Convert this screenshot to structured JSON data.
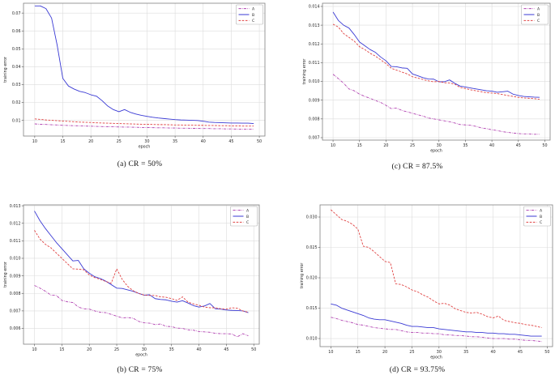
{
  "figure": {
    "legend_entries": [
      "A",
      "B",
      "C"
    ],
    "colors": {
      "A": "#b143b1",
      "B": "#3a3ad4",
      "C": "#e04343"
    },
    "line_styles": {
      "A": "dashdot",
      "B": "solid",
      "C": "dashed"
    },
    "grid_color": "#dcdcdc",
    "background": "#ffffff"
  },
  "chart_data": [
    {
      "id": "a",
      "type": "line",
      "caption": "(a) CR = 50%",
      "xlabel": "epoch",
      "ylabel": "training error",
      "legend_position": "upper right",
      "grid": true,
      "xlim": [
        8,
        51
      ],
      "ylim": [
        0.0012,
        0.0755
      ],
      "xticks": [
        10,
        15,
        20,
        25,
        30,
        35,
        40,
        45,
        50
      ],
      "yticks": [
        0.01,
        0.02,
        0.03,
        0.04,
        0.05,
        0.06,
        0.07
      ],
      "ytick_labels": [
        "0.01",
        "0.02",
        "0.03",
        "0.04",
        "0.05",
        "0.06",
        "0.07"
      ],
      "x": [
        10,
        11,
        12,
        13,
        14,
        15,
        16,
        17,
        18,
        19,
        20,
        21,
        22,
        23,
        24,
        25,
        26,
        27,
        28,
        29,
        30,
        31,
        32,
        33,
        34,
        35,
        36,
        37,
        38,
        39,
        40,
        41,
        42,
        43,
        44,
        45,
        46,
        47,
        48,
        49
      ],
      "series": [
        {
          "name": "A",
          "style": "dashdot",
          "color": "#b143b1",
          "values": [
            0.008,
            0.0078,
            0.0077,
            0.0075,
            0.0074,
            0.0072,
            0.0071,
            0.007,
            0.0069,
            0.0068,
            0.0067,
            0.0066,
            0.0065,
            0.0064,
            0.0064,
            0.0063,
            0.0062,
            0.0062,
            0.0061,
            0.006,
            0.006,
            0.0059,
            0.0058,
            0.0058,
            0.0057,
            0.0057,
            0.0056,
            0.0056,
            0.0055,
            0.0055,
            0.0054,
            0.0054,
            0.0053,
            0.0053,
            0.0052,
            0.0052,
            0.0051,
            0.0051,
            0.005,
            0.005
          ]
        },
        {
          "name": "B",
          "style": "solid",
          "color": "#3a3ad4",
          "values": [
            0.074,
            0.074,
            0.0725,
            0.0672,
            0.052,
            0.0335,
            0.0292,
            0.0275,
            0.0262,
            0.0255,
            0.0243,
            0.0235,
            0.021,
            0.018,
            0.016,
            0.0148,
            0.016,
            0.0145,
            0.0135,
            0.0128,
            0.0122,
            0.0117,
            0.0113,
            0.011,
            0.0107,
            0.0104,
            0.0102,
            0.0101,
            0.01,
            0.0099,
            0.0095,
            0.009,
            0.0088,
            0.0087,
            0.0086,
            0.0085,
            0.0085,
            0.0084,
            0.0084,
            0.0082
          ]
        },
        {
          "name": "C",
          "style": "dashed",
          "color": "#e04343",
          "values": [
            0.0108,
            0.0105,
            0.0102,
            0.01,
            0.0098,
            0.0096,
            0.0094,
            0.0092,
            0.009,
            0.0089,
            0.0088,
            0.0086,
            0.0085,
            0.0084,
            0.0083,
            0.0082,
            0.0081,
            0.008,
            0.0079,
            0.0078,
            0.0078,
            0.0077,
            0.0076,
            0.0076,
            0.0075,
            0.0074,
            0.0074,
            0.0073,
            0.0073,
            0.0072,
            0.0072,
            0.0071,
            0.0071,
            0.007,
            0.007,
            0.0069,
            0.0069,
            0.0068,
            0.0068,
            0.0068
          ]
        }
      ]
    },
    {
      "id": "c",
      "type": "line",
      "caption": "(c) CR = 87.5%",
      "xlabel": "epoch",
      "ylabel": "training error",
      "legend_position": "upper right",
      "grid": true,
      "xlim": [
        8,
        51
      ],
      "ylim": [
        0.00687,
        0.01417
      ],
      "xticks": [
        10,
        15,
        20,
        25,
        30,
        35,
        40,
        45,
        50
      ],
      "yticks": [
        0.007,
        0.008,
        0.009,
        0.01,
        0.011,
        0.012,
        0.013,
        0.014
      ],
      "ytick_labels": [
        "0.007",
        "0.008",
        "0.009",
        "0.010",
        "0.011",
        "0.012",
        "0.013",
        "0.014"
      ],
      "x": [
        10,
        11,
        12,
        13,
        14,
        15,
        16,
        17,
        18,
        19,
        20,
        21,
        22,
        23,
        24,
        25,
        26,
        27,
        28,
        29,
        30,
        31,
        32,
        33,
        34,
        35,
        36,
        37,
        38,
        39,
        40,
        41,
        42,
        43,
        44,
        45,
        46,
        47,
        48,
        49
      ],
      "series": [
        {
          "name": "A",
          "style": "dashdot",
          "color": "#b143b1",
          "values": [
            0.01038,
            0.01015,
            0.0099,
            0.0096,
            0.0095,
            0.00932,
            0.0092,
            0.0091,
            0.00898,
            0.00888,
            0.00872,
            0.00855,
            0.00858,
            0.00845,
            0.00838,
            0.0083,
            0.00822,
            0.00815,
            0.00805,
            0.008,
            0.00795,
            0.0079,
            0.00785,
            0.00778,
            0.0077,
            0.00768,
            0.00766,
            0.0076,
            0.00752,
            0.00748,
            0.00742,
            0.00738,
            0.00732,
            0.00728,
            0.00725,
            0.00722,
            0.0072,
            0.0072,
            0.00718,
            0.00718
          ]
        },
        {
          "name": "B",
          "style": "solid",
          "color": "#3a3ad4",
          "values": [
            0.0137,
            0.01325,
            0.013,
            0.01285,
            0.0125,
            0.0121,
            0.0119,
            0.0117,
            0.01155,
            0.0113,
            0.0111,
            0.0108,
            0.01078,
            0.01072,
            0.0107,
            0.0104,
            0.0103,
            0.0102,
            0.01013,
            0.01012,
            0.00998,
            0.00998,
            0.01008,
            0.0099,
            0.00975,
            0.0097,
            0.00965,
            0.0096,
            0.00955,
            0.0095,
            0.00948,
            0.00942,
            0.00945,
            0.00948,
            0.00932,
            0.00925,
            0.0092,
            0.00918,
            0.00916,
            0.00915
          ]
        },
        {
          "name": "C",
          "style": "dashed",
          "color": "#e04343",
          "values": [
            0.01305,
            0.0129,
            0.01255,
            0.01235,
            0.01215,
            0.01185,
            0.0117,
            0.0115,
            0.01135,
            0.01115,
            0.01095,
            0.0107,
            0.0106,
            0.0105,
            0.0104,
            0.01025,
            0.01018,
            0.0101,
            0.01003,
            0.00998,
            0.01,
            0.00993,
            0.00992,
            0.00985,
            0.00968,
            0.00962,
            0.00955,
            0.0095,
            0.00945,
            0.0094,
            0.00938,
            0.00935,
            0.0093,
            0.00925,
            0.0092,
            0.00915,
            0.00912,
            0.0091,
            0.00908,
            0.00905
          ]
        }
      ]
    },
    {
      "id": "b",
      "type": "line",
      "caption": "(b) CR = 75%",
      "xlabel": "epoch",
      "ylabel": "training error",
      "legend_position": "upper right",
      "grid": true,
      "xlim": [
        8,
        51
      ],
      "ylim": [
        0.0051,
        0.01305
      ],
      "xticks": [
        10,
        15,
        20,
        25,
        30,
        35,
        40,
        45,
        50
      ],
      "yticks": [
        0.006,
        0.007,
        0.008,
        0.009,
        0.01,
        0.011,
        0.012,
        0.013
      ],
      "ytick_labels": [
        "0.006",
        "0.007",
        "0.008",
        "0.009",
        "0.010",
        "0.011",
        "0.012",
        "0.013"
      ],
      "x": [
        10,
        11,
        12,
        13,
        14,
        15,
        16,
        17,
        18,
        19,
        20,
        21,
        22,
        23,
        24,
        25,
        26,
        27,
        28,
        29,
        30,
        31,
        32,
        33,
        34,
        35,
        36,
        37,
        38,
        39,
        40,
        41,
        42,
        43,
        44,
        45,
        46,
        47,
        48,
        49
      ],
      "series": [
        {
          "name": "A",
          "style": "dashdot",
          "color": "#b143b1",
          "values": [
            0.00845,
            0.0083,
            0.00812,
            0.0079,
            0.00788,
            0.0076,
            0.00752,
            0.00748,
            0.00722,
            0.00712,
            0.0071,
            0.007,
            0.00692,
            0.0069,
            0.0068,
            0.0067,
            0.0066,
            0.00662,
            0.00658,
            0.0064,
            0.00632,
            0.0063,
            0.00622,
            0.00625,
            0.00612,
            0.0061,
            0.00602,
            0.006,
            0.00592,
            0.0059,
            0.00582,
            0.0058,
            0.00578,
            0.00572,
            0.0057,
            0.0057,
            0.00568,
            0.00552,
            0.0057,
            0.00558
          ]
        },
        {
          "name": "B",
          "style": "solid",
          "color": "#3a3ad4",
          "values": [
            0.0127,
            0.01215,
            0.0117,
            0.0113,
            0.0109,
            0.01055,
            0.0102,
            0.00985,
            0.00988,
            0.0094,
            0.00915,
            0.00895,
            0.00885,
            0.0087,
            0.0085,
            0.0083,
            0.00828,
            0.0082,
            0.00812,
            0.008,
            0.0079,
            0.00792,
            0.0077,
            0.00765,
            0.00763,
            0.00755,
            0.0075,
            0.00758,
            0.00745,
            0.0073,
            0.00722,
            0.00728,
            0.00742,
            0.00712,
            0.0071,
            0.00705,
            0.00703,
            0.00702,
            0.007,
            0.0069
          ]
        },
        {
          "name": "C",
          "style": "dashed",
          "color": "#e04343",
          "values": [
            0.0116,
            0.0111,
            0.0108,
            0.0106,
            0.0103,
            0.01,
            0.0097,
            0.0094,
            0.00938,
            0.00935,
            0.00905,
            0.0089,
            0.0088,
            0.00868,
            0.00858,
            0.0094,
            0.0088,
            0.0084,
            0.00815,
            0.008,
            0.0079,
            0.00788,
            0.00788,
            0.0078,
            0.00778,
            0.0077,
            0.0076,
            0.0078,
            0.0075,
            0.0074,
            0.00732,
            0.00722,
            0.00718,
            0.00718,
            0.00712,
            0.0071,
            0.00718,
            0.00715,
            0.007,
            0.00692
          ]
        }
      ]
    },
    {
      "id": "d",
      "type": "line",
      "caption": "(d) CR = 93.75%",
      "xlabel": "epoch",
      "ylabel": "training error",
      "legend_position": "upper right",
      "grid": true,
      "xlim": [
        8,
        51
      ],
      "ylim": [
        0.00867,
        0.032
      ],
      "xticks": [
        10,
        15,
        20,
        25,
        30,
        35,
        40,
        45,
        50
      ],
      "yticks": [
        0.01,
        0.015,
        0.02,
        0.025,
        0.03
      ],
      "ytick_labels": [
        "0.010",
        "0.015",
        "0.020",
        "0.025",
        "0.030"
      ],
      "x": [
        10,
        11,
        12,
        13,
        14,
        15,
        16,
        17,
        18,
        19,
        20,
        21,
        22,
        23,
        24,
        25,
        26,
        27,
        28,
        29,
        30,
        31,
        32,
        33,
        34,
        35,
        36,
        37,
        38,
        39,
        40,
        41,
        42,
        43,
        44,
        45,
        46,
        47,
        48,
        49
      ],
      "series": [
        {
          "name": "A",
          "style": "dashdot",
          "color": "#b143b1",
          "values": [
            0.0135,
            0.0133,
            0.013,
            0.0128,
            0.0126,
            0.0123,
            0.0122,
            0.012,
            0.0118,
            0.0117,
            0.0116,
            0.0115,
            0.0115,
            0.0113,
            0.0111,
            0.011,
            0.011,
            0.0109,
            0.0109,
            0.0108,
            0.0108,
            0.0106,
            0.0106,
            0.0105,
            0.0105,
            0.0104,
            0.0103,
            0.0103,
            0.0102,
            0.0101,
            0.01,
            0.01,
            0.01,
            0.0099,
            0.0099,
            0.0098,
            0.0097,
            0.0097,
            0.0096,
            0.0095
          ]
        },
        {
          "name": "B",
          "style": "solid",
          "color": "#3a3ad4",
          "values": [
            0.0157,
            0.0155,
            0.015,
            0.0147,
            0.0144,
            0.0141,
            0.0138,
            0.0134,
            0.0132,
            0.0131,
            0.0131,
            0.0129,
            0.0127,
            0.0125,
            0.0122,
            0.012,
            0.012,
            0.0119,
            0.0118,
            0.0118,
            0.0116,
            0.0115,
            0.0114,
            0.0113,
            0.0112,
            0.0111,
            0.0111,
            0.011,
            0.011,
            0.0109,
            0.0109,
            0.0108,
            0.0108,
            0.0107,
            0.0107,
            0.0106,
            0.0105,
            0.0104,
            0.0104,
            0.0104
          ]
        },
        {
          "name": "C",
          "style": "dashed",
          "color": "#e04343",
          "values": [
            0.0312,
            0.0304,
            0.0296,
            0.0293,
            0.0288,
            0.028,
            0.0252,
            0.025,
            0.0243,
            0.0235,
            0.0227,
            0.0225,
            0.019,
            0.0189,
            0.0185,
            0.018,
            0.0177,
            0.0172,
            0.0168,
            0.0162,
            0.0157,
            0.0158,
            0.0155,
            0.0149,
            0.0146,
            0.0143,
            0.0142,
            0.0143,
            0.014,
            0.0136,
            0.0134,
            0.0137,
            0.013,
            0.0128,
            0.0126,
            0.0125,
            0.0123,
            0.0122,
            0.012,
            0.0118
          ]
        }
      ]
    }
  ]
}
